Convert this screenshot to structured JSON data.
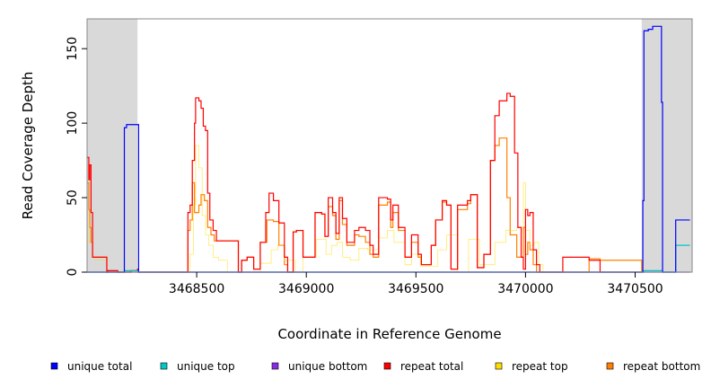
{
  "chart_data": {
    "type": "line",
    "title": "",
    "xlabel": "Coordinate in Reference Genome",
    "ylabel": "Read Coverage Depth",
    "xlim": [
      3468000,
      3470760
    ],
    "ylim": [
      0,
      170
    ],
    "x_ticks": [
      3468500,
      3469000,
      3469500,
      3470000,
      3470500
    ],
    "y_ticks": [
      0,
      50,
      100,
      150
    ],
    "shaded_regions": [
      [
        3468000,
        3468230
      ],
      [
        3470530,
        3470760
      ]
    ],
    "grid": false,
    "legend_position": "bottom",
    "series": [
      {
        "name": "unique total",
        "color": "#0000ff",
        "x": [
          3468000,
          3468165,
          3468170,
          3468180,
          3468230,
          3468235,
          3470530,
          3470535,
          3470540,
          3470560,
          3470580,
          3470610,
          3470620,
          3470625,
          3470680,
          3470685,
          3470750
        ],
        "y": [
          0,
          0,
          97,
          99,
          99,
          0,
          0,
          48,
          162,
          163,
          165,
          165,
          114,
          0,
          0,
          35,
          35
        ]
      },
      {
        "name": "unique top",
        "color": "#00c8c8",
        "x": [
          3468000,
          3468165,
          3468170,
          3468230,
          3468235,
          3470530,
          3470540,
          3470620,
          3470625,
          3470680,
          3470685,
          3470750
        ],
        "y": [
          0,
          0,
          1,
          1,
          0,
          0,
          1,
          1,
          0,
          0,
          18,
          18
        ]
      },
      {
        "name": "unique bottom",
        "color": "#8a2be2",
        "x": [
          3468000,
          3468165,
          3468170,
          3468230,
          3468235,
          3470530,
          3470540,
          3470620,
          3470625,
          3470750
        ],
        "y": [
          0,
          0,
          0,
          0,
          0,
          0,
          0,
          0,
          0,
          0
        ]
      },
      {
        "name": "repeat total",
        "color": "#ff0000",
        "x": [
          3468000,
          3468008,
          3468012,
          3468018,
          3468025,
          3468040,
          3468090,
          3468095,
          3468135,
          3468140,
          3468165,
          3468200,
          3468230,
          3468235,
          3468280,
          3468455,
          3468460,
          3468470,
          3468480,
          3468490,
          3468495,
          3468510,
          3468520,
          3468530,
          3468540,
          3468550,
          3468560,
          3468575,
          3468590,
          3468630,
          3468690,
          3468705,
          3468730,
          3468760,
          3468790,
          3468815,
          3468830,
          3468850,
          3468875,
          3468900,
          3468915,
          3468940,
          3468955,
          3468985,
          3469040,
          3469070,
          3469085,
          3469100,
          3469120,
          3469135,
          3469150,
          3469165,
          3469185,
          3469220,
          3469240,
          3469270,
          3469290,
          3469305,
          3469330,
          3469370,
          3469385,
          3469395,
          3469420,
          3469450,
          3469480,
          3469510,
          3469525,
          3469555,
          3469570,
          3469590,
          3469620,
          3469640,
          3469660,
          3469690,
          3469735,
          3469750,
          3469780,
          3469810,
          3469840,
          3469860,
          3469880,
          3469915,
          3469930,
          3469950,
          3469965,
          3469980,
          3469990,
          3470000,
          3470010,
          3470020,
          3470035,
          3470050,
          3470065,
          3470080,
          3470100,
          3470110,
          3470130,
          3470170,
          3470290,
          3470340,
          3470530
        ],
        "y": [
          77,
          62,
          72,
          40,
          10,
          10,
          0,
          1,
          1,
          0,
          0,
          1,
          2,
          0,
          0,
          0,
          40,
          45,
          75,
          100,
          117,
          115,
          110,
          98,
          95,
          53,
          35,
          28,
          21,
          21,
          0,
          8,
          10,
          2,
          20,
          40,
          53,
          48,
          33,
          10,
          0,
          27,
          28,
          10,
          40,
          39,
          24,
          50,
          40,
          26,
          50,
          36,
          20,
          28,
          30,
          28,
          18,
          12,
          50,
          49,
          35,
          45,
          30,
          10,
          25,
          12,
          5,
          5,
          18,
          35,
          48,
          45,
          2,
          45,
          48,
          52,
          3,
          12,
          75,
          105,
          115,
          120,
          118,
          80,
          30,
          10,
          2,
          42,
          38,
          40,
          15,
          5,
          0,
          0,
          0,
          0,
          0,
          10,
          8,
          0,
          0
        ]
      },
      {
        "name": "repeat top",
        "color": "#ffdd00",
        "x": [
          3468000,
          3468010,
          3468025,
          3468040,
          3468090,
          3468140,
          3468230,
          3468455,
          3468470,
          3468485,
          3468495,
          3468510,
          3468525,
          3468540,
          3468555,
          3468575,
          3468600,
          3468640,
          3468700,
          3468790,
          3468840,
          3468870,
          3468900,
          3468950,
          3468985,
          3469045,
          3469090,
          3469115,
          3469140,
          3469165,
          3469200,
          3469240,
          3469280,
          3469330,
          3469370,
          3469400,
          3469450,
          3469480,
          3469520,
          3469560,
          3469600,
          3469640,
          3469690,
          3469740,
          3469790,
          3469860,
          3469910,
          3469960,
          3469990,
          3470000,
          3470020,
          3470040,
          3470060,
          3470080,
          3470130,
          3470290,
          3470340,
          3470530
        ],
        "y": [
          20,
          40,
          10,
          8,
          0,
          0,
          0,
          0,
          12,
          45,
          85,
          70,
          38,
          25,
          18,
          10,
          8,
          0,
          0,
          6,
          15,
          18,
          8,
          0,
          10,
          22,
          12,
          18,
          20,
          10,
          8,
          16,
          15,
          23,
          28,
          20,
          5,
          12,
          4,
          4,
          15,
          25,
          0,
          22,
          5,
          20,
          28,
          30,
          60,
          28,
          18,
          20,
          5,
          0,
          0,
          0,
          0,
          0
        ]
      },
      {
        "name": "repeat bottom",
        "color": "#ff8000",
        "x": [
          3468000,
          3468008,
          3468012,
          3468018,
          3468025,
          3468040,
          3468090,
          3468095,
          3468135,
          3468140,
          3468165,
          3468200,
          3468230,
          3468235,
          3468280,
          3468455,
          3468460,
          3468470,
          3468480,
          3468490,
          3468510,
          3468520,
          3468535,
          3468550,
          3468565,
          3468580,
          3468600,
          3468630,
          3468690,
          3468705,
          3468730,
          3468760,
          3468790,
          3468820,
          3468850,
          3468875,
          3468900,
          3468915,
          3468940,
          3468955,
          3468985,
          3469040,
          3469070,
          3469085,
          3469100,
          3469120,
          3469135,
          3469150,
          3469165,
          3469185,
          3469220,
          3469240,
          3469270,
          3469290,
          3469305,
          3469330,
          3469370,
          3469385,
          3469395,
          3469420,
          3469450,
          3469480,
          3469510,
          3469525,
          3469555,
          3469570,
          3469590,
          3469620,
          3469640,
          3469660,
          3469690,
          3469735,
          3469750,
          3469780,
          3469810,
          3469840,
          3469860,
          3469880,
          3469915,
          3469930,
          3469960,
          3469990,
          3470000,
          3470010,
          3470020,
          3470035,
          3470050,
          3470065,
          3470080,
          3470100,
          3470130,
          3470170,
          3470290,
          3470340,
          3470530
        ],
        "y": [
          60,
          42,
          30,
          20,
          10,
          10,
          0,
          1,
          1,
          0,
          0,
          1,
          2,
          0,
          0,
          0,
          28,
          35,
          60,
          40,
          45,
          52,
          48,
          30,
          25,
          21,
          21,
          21,
          0,
          8,
          10,
          2,
          20,
          35,
          34,
          18,
          5,
          0,
          27,
          28,
          10,
          40,
          39,
          24,
          44,
          38,
          22,
          48,
          32,
          18,
          25,
          24,
          20,
          12,
          10,
          45,
          47,
          30,
          40,
          28,
          10,
          20,
          10,
          5,
          5,
          18,
          35,
          47,
          45,
          2,
          42,
          46,
          52,
          3,
          12,
          75,
          85,
          90,
          50,
          25,
          10,
          30,
          12,
          20,
          15,
          5,
          0,
          0,
          0,
          0,
          0,
          0,
          9,
          8,
          0
        ]
      }
    ]
  }
}
